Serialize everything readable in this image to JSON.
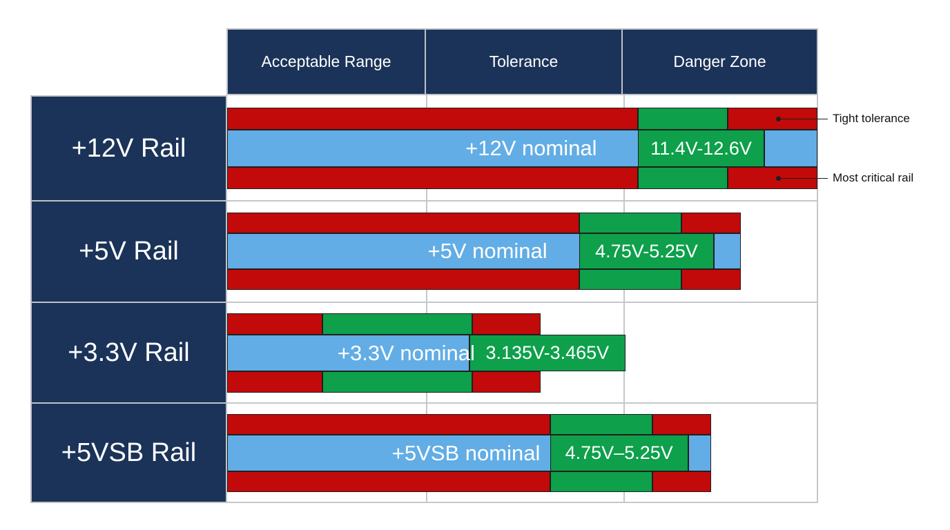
{
  "chart_data": {
    "type": "bar",
    "columns": [
      "Acceptable Range",
      "Tolerance",
      "Danger Zone"
    ],
    "series": [
      {
        "label": "+12V Rail",
        "nominal_label": "+12V nominal",
        "range_label": "11.4V-12.6V",
        "annotations": [
          "Tight tolerance",
          "Most critical rail"
        ],
        "blue_end": 100,
        "green_inner": [
          69.6,
          91.0
        ],
        "green_outer": [
          69.6,
          84.8
        ],
        "red_outer_end": 100
      },
      {
        "label": "+5V Rail",
        "nominal_label": "+5V nominal",
        "range_label": "4.75V-5.25V",
        "annotations": [],
        "blue_end": 87.0,
        "green_inner": [
          59.6,
          82.5
        ],
        "green_outer": [
          59.6,
          77.0
        ],
        "red_outer_end": 87.0
      },
      {
        "label": "+3.3V Rail",
        "nominal_label": "+3.3V nominal",
        "range_label": "3.135V-3.465V",
        "annotations": [],
        "blue_end": 41.0,
        "green_inner": [
          41.0,
          67.5
        ],
        "green_outer": [
          16.1,
          41.5
        ],
        "red_outer_end": 53.1
      },
      {
        "label": "+5VSB Rail",
        "nominal_label": "+5VSB nominal",
        "range_label": "4.75V–5.25V",
        "annotations": [],
        "blue_end": 82.0,
        "green_inner": [
          54.7,
          78.1
        ],
        "green_outer": [
          54.7,
          72.1
        ],
        "red_outer_end": 82.0
      }
    ]
  },
  "colors": {
    "header_bg": "#1b3358",
    "danger": "#c20a0a",
    "tolerance": "#0ea04b",
    "acceptable": "#62ade5",
    "grid": "#c4c7ca"
  }
}
